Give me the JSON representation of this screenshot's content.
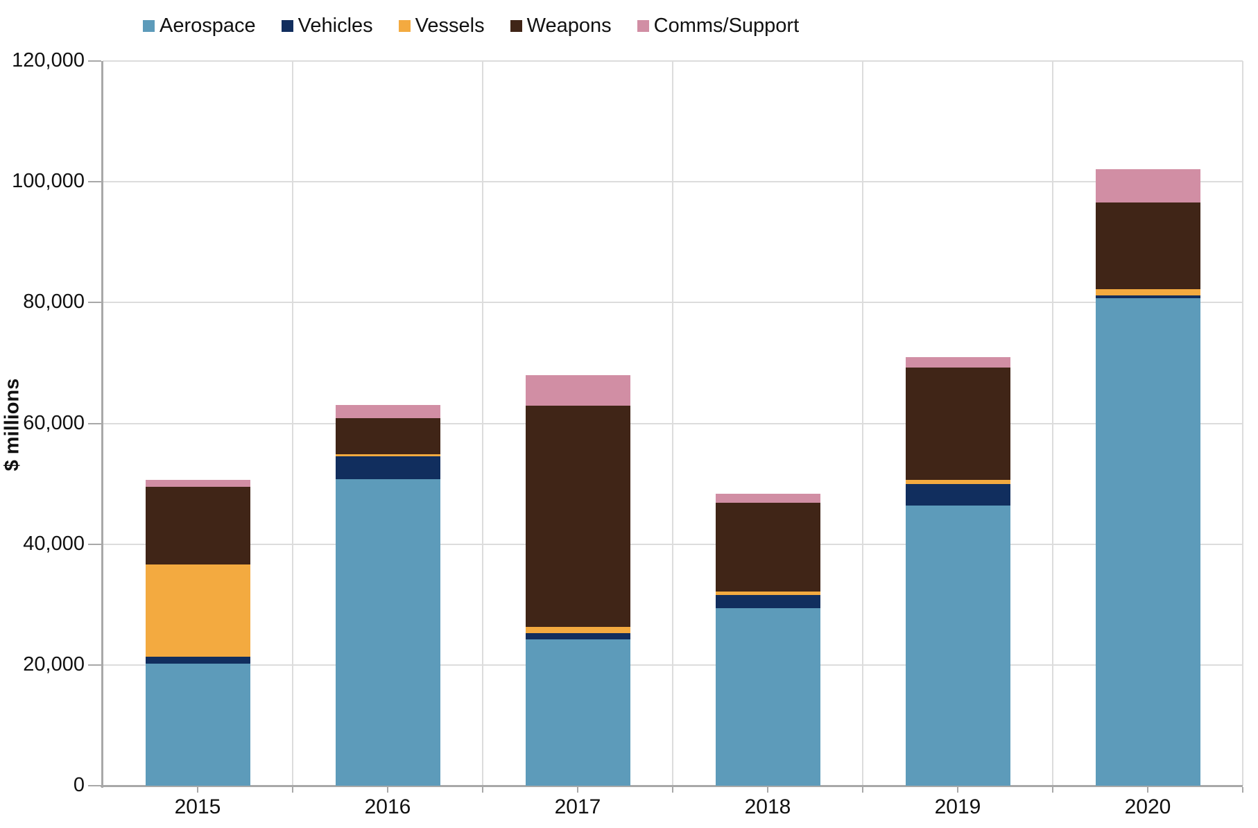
{
  "chart_data": {
    "type": "bar",
    "stacked": true,
    "title": "",
    "ylabel": "$ millions",
    "categories": [
      "2015",
      "2016",
      "2017",
      "2018",
      "2019",
      "2020"
    ],
    "series": [
      {
        "name": "Aerospace",
        "color": "#5d9bba",
        "values": [
          20200,
          50800,
          24200,
          29400,
          46400,
          80700
        ]
      },
      {
        "name": "Vehicles",
        "color": "#112e5e",
        "values": [
          1200,
          3700,
          1100,
          2200,
          3600,
          500
        ]
      },
      {
        "name": "Vessels",
        "color": "#f3aa40",
        "values": [
          15200,
          400,
          1000,
          600,
          600,
          1000
        ]
      },
      {
        "name": "Weapons",
        "color": "#402517",
        "values": [
          12900,
          6000,
          36600,
          14600,
          18700,
          14400
        ]
      },
      {
        "name": "Comms/Support",
        "color": "#d18ea4",
        "values": [
          1100,
          2200,
          5100,
          1500,
          1700,
          5500
        ]
      }
    ],
    "totals": [
      50600,
      63100,
      68000,
      48300,
      71000,
      102100
    ],
    "ylim": [
      0,
      120000
    ],
    "ytick_step": 20000,
    "ytick_labels": [
      "0",
      "20,000",
      "40,000",
      "60,000",
      "80,000",
      "100,000",
      "120,000"
    ],
    "grid": true,
    "legend_position": "top-left",
    "colors": {
      "gridline": "#dcdcdc",
      "axis": "#a8a8a8",
      "text": "#111111",
      "background": "#ffffff"
    }
  }
}
